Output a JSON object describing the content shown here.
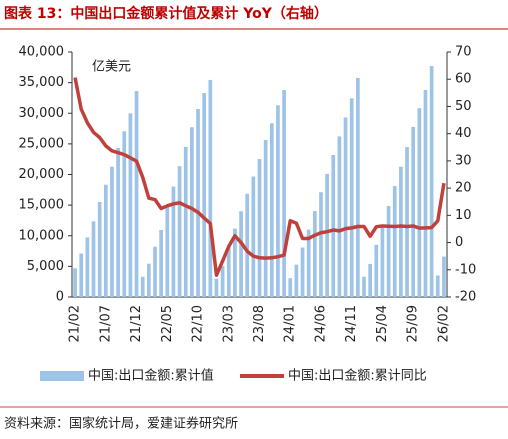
{
  "chart_data": {
    "type": "bar_line",
    "title": "图表 13：中国出口金额累计值及累计 YoY（右轴）",
    "unit_label": "亿美元",
    "source": "资料来源：国家统计局，爱建证券研究所",
    "categories": [
      "21/02",
      null,
      null,
      null,
      null,
      "21/07",
      null,
      null,
      null,
      null,
      "21/12",
      null,
      null,
      null,
      null,
      "22/05",
      null,
      null,
      null,
      null,
      "22/10",
      null,
      null,
      null,
      null,
      "23/03",
      null,
      null,
      null,
      null,
      "23/08",
      null,
      null,
      null,
      null,
      "24/01",
      null,
      null,
      null,
      null,
      "24/06",
      null,
      null,
      null,
      null,
      "24/11",
      null,
      null,
      null,
      null,
      "25/04",
      null,
      null,
      null,
      null,
      "25/09",
      null,
      null,
      null,
      null,
      "26/02"
    ],
    "series": [
      {
        "name": "中国:出口金额:累计值",
        "color": "#9dc3e6",
        "type": "bar",
        "values": [
          4690,
          7100,
          9730,
          12360,
          15510,
          18330,
          21270,
          24320,
          27060,
          29990,
          33630,
          3300,
          5440,
          8210,
          10955,
          14720,
          18030,
          21350,
          24500,
          27720,
          30700,
          33300,
          35440,
          3000,
          5064,
          8217,
          11169,
          14004,
          16854,
          19670,
          22515,
          25622,
          28367,
          31289,
          33800,
          3070,
          5280,
          8082,
          11004,
          14028,
          17103,
          20110,
          23196,
          26226,
          29316,
          32434,
          35772,
          3300,
          5399,
          8527,
          11683,
          14848,
          18101,
          21270,
          24483,
          27766,
          30820,
          33800,
          37700,
          3500,
          6600
        ]
      },
      {
        "name": "中国:出口金额:累计同比",
        "color": "#c0403c",
        "type": "line",
        "axis": "y2",
        "values": [
          60.6,
          49,
          44,
          40.5,
          38.6,
          35.5,
          33.7,
          33,
          32.3,
          31.1,
          29.9,
          24,
          16.3,
          15.8,
          12.5,
          13.5,
          14.2,
          14.6,
          13.5,
          12.5,
          11.1,
          9,
          7,
          -12,
          -6.8,
          -1.4,
          2.5,
          0,
          -3.2,
          -5,
          -5.6,
          -5.7,
          -5.6,
          -5.2,
          -4.6,
          8,
          7.1,
          1.5,
          1.5,
          2.7,
          3.6,
          4,
          4.6,
          4.3,
          5.1,
          5.4,
          5.9,
          5.9,
          2.3,
          5.8,
          6.1,
          6,
          5.9,
          6.1,
          5.9,
          6.1,
          5.3,
          5.4,
          5.5,
          8,
          21.8
        ]
      }
    ],
    "ylim": [
      0,
      40000
    ],
    "yticks": [
      0,
      {
        "value": 5000,
        "label": "5,000"
      },
      {
        "value": 10000,
        "label": "10,000"
      },
      {
        "value": 15000,
        "label": "15,000"
      },
      {
        "value": 20000,
        "label": "20,000"
      },
      {
        "value": 25000,
        "label": "25,000"
      },
      {
        "value": 30000,
        "label": "30,000"
      },
      {
        "value": 35000,
        "label": "35,000"
      },
      {
        "value": 40000,
        "label": "40,000"
      }
    ],
    "y2lim": [
      -20,
      70
    ],
    "y2ticks": [
      -20,
      -10,
      0,
      10,
      20,
      30,
      40,
      50,
      60,
      70
    ]
  }
}
